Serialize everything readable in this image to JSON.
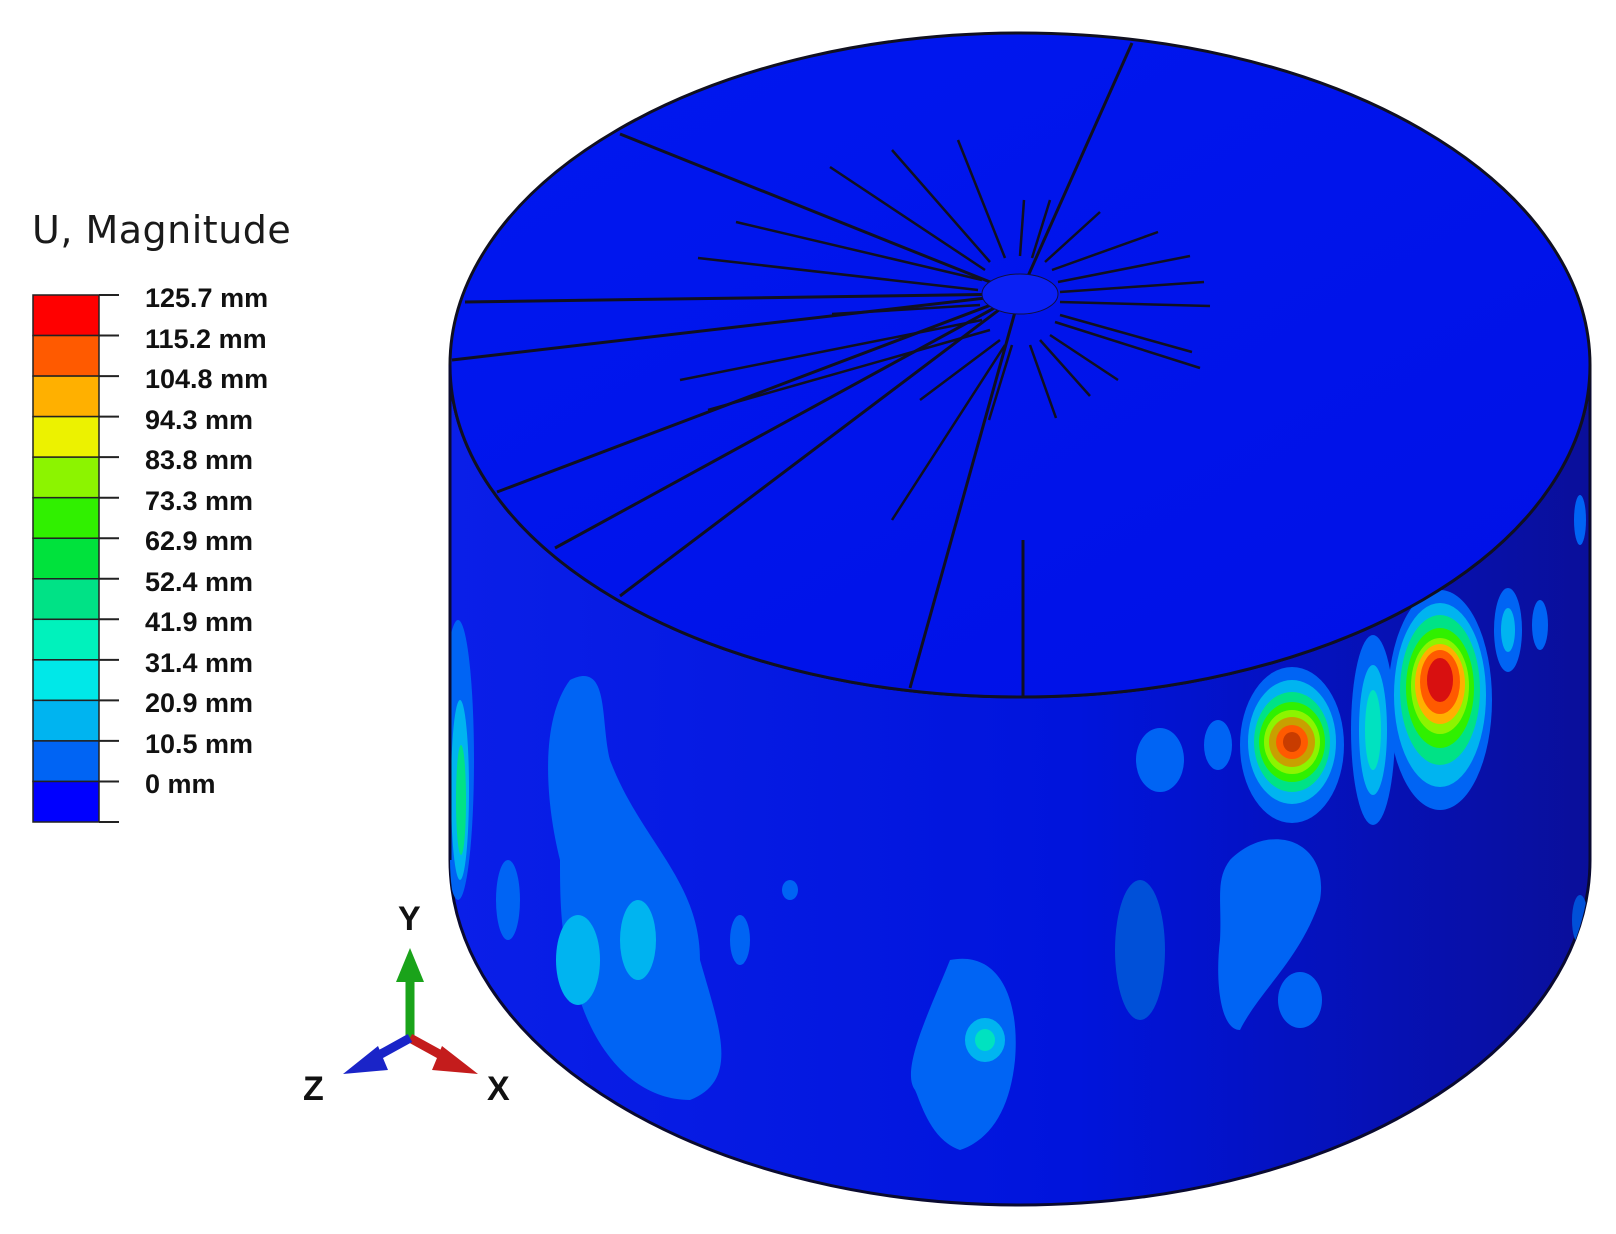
{
  "legend": {
    "title": "U, Magnitude",
    "levels": [
      {
        "label": "125.7 mm",
        "color": "#ff0000"
      },
      {
        "label": "115.2 mm",
        "color": "#ff5a00"
      },
      {
        "label": "104.8 mm",
        "color": "#ffb000"
      },
      {
        "label": "94.3 mm",
        "color": "#ecf200"
      },
      {
        "label": "83.8 mm",
        "color": "#8cf400"
      },
      {
        "label": "73.3 mm",
        "color": "#30f000"
      },
      {
        "label": "62.9 mm",
        "color": "#00e23c"
      },
      {
        "label": "52.4 mm",
        "color": "#00e286"
      },
      {
        "label": "41.9 mm",
        "color": "#00f2bc"
      },
      {
        "label": "31.4 mm",
        "color": "#00e8e8"
      },
      {
        "label": "20.9 mm",
        "color": "#00b4f0"
      },
      {
        "label": "10.5 mm",
        "color": "#0064f4"
      },
      {
        "label": "0 mm",
        "color": "#0000ff"
      }
    ]
  },
  "triad": {
    "y_label": "Y",
    "x_label": "X",
    "z_label": "Z",
    "y_color": "#1aa31a",
    "x_color": "#c41c1c",
    "z_color": "#1a24c8"
  },
  "model": {
    "base_color": "#0010ee",
    "line_color": "#101020"
  }
}
